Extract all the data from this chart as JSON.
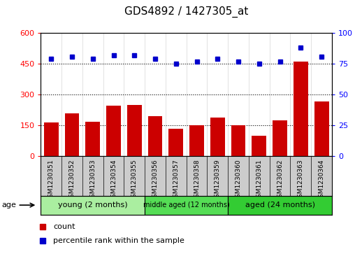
{
  "title": "GDS4892 / 1427305_at",
  "samples": [
    "GSM1230351",
    "GSM1230352",
    "GSM1230353",
    "GSM1230354",
    "GSM1230355",
    "GSM1230356",
    "GSM1230357",
    "GSM1230358",
    "GSM1230359",
    "GSM1230360",
    "GSM1230361",
    "GSM1230362",
    "GSM1230363",
    "GSM1230364"
  ],
  "counts": [
    165,
    210,
    168,
    245,
    248,
    195,
    135,
    152,
    188,
    150,
    100,
    175,
    460,
    265
  ],
  "percentile_ranks": [
    79,
    81,
    79,
    82,
    82,
    79,
    75,
    77,
    79,
    77,
    75,
    77,
    88,
    81
  ],
  "groups": [
    {
      "label": "young (2 months)",
      "start": 0,
      "end": 5,
      "color": "#aaeea0"
    },
    {
      "label": "middle aged (12 months)",
      "start": 5,
      "end": 9,
      "color": "#55dd55"
    },
    {
      "label": "aged (24 months)",
      "start": 9,
      "end": 14,
      "color": "#33cc33"
    }
  ],
  "ylim_left": [
    0,
    600
  ],
  "ylim_right": [
    0,
    100
  ],
  "yticks_left": [
    0,
    150,
    300,
    450,
    600
  ],
  "yticks_right": [
    0,
    25,
    50,
    75,
    100
  ],
  "bar_color": "#cc0000",
  "dot_color": "#0000cc",
  "title_fontsize": 11,
  "tick_fontsize": 8,
  "sample_fontsize": 6.5,
  "group_fontsize_small": 7,
  "group_fontsize_large": 8,
  "legend_fontsize": 8
}
